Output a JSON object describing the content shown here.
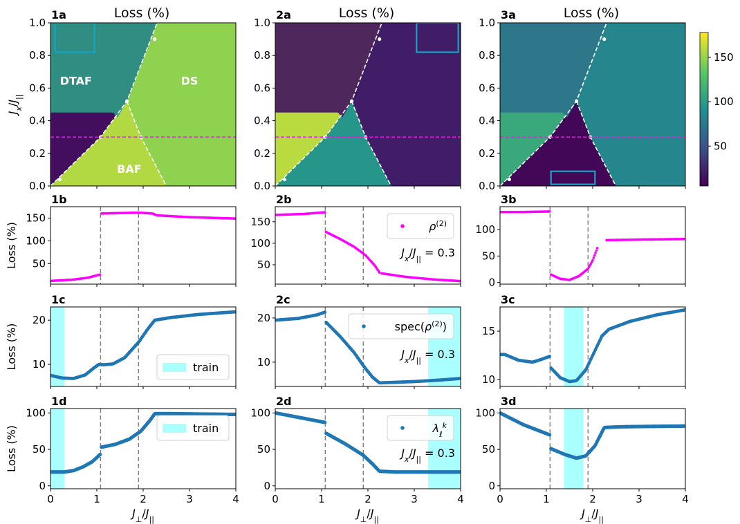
{
  "colors": {
    "rho": "#ff00ff",
    "points": "#1f77b4",
    "train": "#aaffff",
    "box": "#17a3c4",
    "vline": "#808080",
    "hline": "#e020e0",
    "colorbar": [
      "#440154",
      "#3b528b",
      "#21908d",
      "#5dc963",
      "#fde725"
    ]
  },
  "colorbar": {
    "ticks": [
      50,
      100,
      150
    ],
    "range": [
      5,
      178
    ]
  },
  "critical_points": [
    1.08,
    1.9
  ],
  "row_a": {
    "title": "Loss (%)",
    "ylabel": "J_x/J_||",
    "xlim": [
      0,
      4
    ],
    "ylim": [
      0,
      1
    ],
    "yticks": [
      "0.0",
      "0.2",
      "0.4",
      "0.6",
      "0.8",
      "1.0"
    ],
    "hline_y": 0.3,
    "region_labels": [
      "DTAF",
      "DS",
      "BAF"
    ],
    "panels": [
      {
        "label": "1a",
        "values": {
          "left": 12,
          "top": 100,
          "bottom": 158,
          "right": 148
        },
        "train_box": {
          "x": [
            0.1,
            0.95
          ],
          "y": [
            0.82,
            1.0
          ]
        }
      },
      {
        "label": "2a",
        "values": {
          "left": 160,
          "top": 15,
          "bottom": 95,
          "right": 20
        },
        "train_box": {
          "x": [
            3.05,
            3.95
          ],
          "y": [
            0.82,
            1.0
          ]
        }
      },
      {
        "label": "3a",
        "values": {
          "left": 110,
          "top": 70,
          "bottom": 8,
          "right": 85
        },
        "train_box": {
          "x": [
            1.1,
            2.05
          ],
          "y": [
            0.01,
            0.09
          ]
        }
      }
    ]
  },
  "row_b": {
    "panels": [
      {
        "label": "1b",
        "ylabel": "Loss (%)",
        "ylim": [
          5,
          175
        ],
        "yticks": [
          50,
          100,
          150
        ],
        "legend": null,
        "annotation": null,
        "segments": [
          {
            "x": [
              0,
              0.5,
              0.8,
              1.07
            ],
            "y": [
              12,
              15,
              19,
              26
            ]
          },
          {
            "x": [
              1.1,
              1.5,
              1.9,
              2.2,
              2.3,
              3.0,
              4.0
            ],
            "y": [
              160,
              161,
              162,
              160,
              156,
              152,
              149
            ]
          }
        ]
      },
      {
        "label": "2b",
        "ylabel": "",
        "ylim": [
          5,
          185
        ],
        "yticks": [
          50,
          100,
          150
        ],
        "legend": {
          "text": "ρ(2)"
        },
        "annotation": {
          "text": "Jx/J|| = 0.3"
        },
        "segments": [
          {
            "x": [
              0,
              0.6,
              1.07
            ],
            "y": [
              166,
              168,
              172
            ]
          },
          {
            "x": [
              1.1,
              1.4,
              1.7,
              1.95,
              2.15,
              2.25
            ],
            "y": [
              126,
              110,
              92,
              72,
              48,
              32
            ]
          },
          {
            "x": [
              2.3,
              2.8,
              3.4,
              4.0
            ],
            "y": [
              30,
              22,
              16,
              12
            ]
          }
        ]
      },
      {
        "label": "3b",
        "ylabel": "",
        "ylim": [
          -3,
          143
        ],
        "yticks": [
          0,
          50,
          100
        ],
        "legend": null,
        "annotation": null,
        "segments": [
          {
            "x": [
              0,
              0.5,
              1.07
            ],
            "y": [
              133,
              133,
              134
            ]
          },
          {
            "x": [
              1.1,
              1.3,
              1.5,
              1.7,
              1.9,
              2.0,
              2.1
            ],
            "y": [
              15,
              7,
              5,
              12,
              26,
              42,
              65
            ]
          },
          {
            "x": [
              2.3,
              3.0,
              4.0
            ],
            "y": [
              80,
              81,
              82
            ]
          }
        ]
      }
    ]
  },
  "row_c": {
    "panels": [
      {
        "label": "1c",
        "ylabel": "Loss (%)",
        "ylim": [
          5.0,
          23
        ],
        "yticks": [
          10,
          20
        ],
        "train": [
          [
            0,
            0.3
          ]
        ],
        "legend": {
          "text": "train",
          "kind": "patch",
          "pos": "bottom-right"
        },
        "annotation": null,
        "segments": [
          {
            "x": [
              0,
              0.25,
              0.5,
              0.75,
              0.95,
              1.05,
              1.15,
              1.35,
              1.6,
              1.9,
              2.1,
              2.25,
              2.6,
              3.2,
              4.0
            ],
            "y": [
              7.5,
              6.9,
              6.8,
              7.6,
              9.3,
              10.0,
              9.9,
              10.1,
              11.5,
              15.0,
              18.0,
              20.0,
              20.6,
              21.3,
              21.9
            ]
          }
        ]
      },
      {
        "label": "2c",
        "ylabel": "",
        "ylim": [
          4.5,
          22.5
        ],
        "yticks": [
          10,
          20
        ],
        "train": [
          [
            3.3,
            4.0
          ]
        ],
        "legend": {
          "text": "spec(ρ(2))",
          "kind": "marker",
          "pos": "top-right"
        },
        "annotation": {
          "text": "Jx/J|| = 0.3"
        },
        "segments": [
          {
            "x": [
              0,
              0.5,
              0.9,
              1.07
            ],
            "y": [
              19.5,
              19.9,
              20.7,
              21.3
            ]
          },
          {
            "x": [
              1.1,
              1.4,
              1.7,
              1.95,
              2.1,
              2.25,
              2.5,
              3.0,
              3.5,
              4.0
            ],
            "y": [
              19.0,
              15.8,
              12.2,
              8.5,
              6.6,
              5.3,
              5.4,
              5.6,
              5.9,
              6.3
            ]
          }
        ]
      },
      {
        "label": "3c",
        "ylabel": "",
        "ylim": [
          9.3,
          17.5
        ],
        "yticks": [
          10,
          15
        ],
        "train": [
          [
            1.38,
            1.8
          ]
        ],
        "legend": null,
        "annotation": null,
        "segments": [
          {
            "x": [
              0,
              0.1,
              0.4,
              0.7,
              0.9,
              1.07
            ],
            "y": [
              12.6,
              12.6,
              12.0,
              11.8,
              12.1,
              12.4
            ]
          },
          {
            "x": [
              1.1,
              1.3,
              1.5,
              1.65,
              1.85,
              2.05,
              2.2,
              2.35,
              2.8,
              3.4,
              4.0
            ],
            "y": [
              11.2,
              10.2,
              9.8,
              9.9,
              11.0,
              13.0,
              14.5,
              15.2,
              16.0,
              16.7,
              17.2
            ]
          }
        ]
      }
    ]
  },
  "row_d": {
    "xlabel": "J⊥/J||",
    "xticks": [
      0,
      1,
      2,
      3,
      4
    ],
    "panels": [
      {
        "label": "1d",
        "ylabel": "Loss (%)",
        "ylim": [
          -4,
          106
        ],
        "yticks": [
          0,
          50,
          100
        ],
        "train": [
          [
            0,
            0.3
          ]
        ],
        "legend": {
          "text": "train",
          "kind": "patch",
          "pos": "top-right"
        },
        "annotation": null,
        "segments": [
          {
            "x": [
              0,
              0.3,
              0.5,
              0.7,
              0.9,
              1.07
            ],
            "y": [
              19,
              19,
              21,
              26,
              33,
              43
            ]
          },
          {
            "x": [
              1.1,
              1.4,
              1.7,
              1.95,
              2.15,
              2.25,
              2.6,
              3.2,
              4.0
            ],
            "y": [
              53,
              57,
              64,
              75,
              90,
              99,
              99,
              98.5,
              98
            ]
          }
        ]
      },
      {
        "label": "2d",
        "ylabel": "",
        "ylim": [
          -4,
          106
        ],
        "yticks": [
          0,
          50,
          100
        ],
        "train": [
          [
            3.3,
            4.0
          ]
        ],
        "legend": {
          "text": "λℓk",
          "kind": "marker",
          "pos": "top-right"
        },
        "annotation": {
          "text": "Jx/J|| = 0.3"
        },
        "segments": [
          {
            "x": [
              0,
              0.5,
              1.07
            ],
            "y": [
              100,
              94,
              87
            ]
          },
          {
            "x": [
              1.1,
              1.5,
              1.9,
              2.1,
              2.25,
              2.6,
              3.2,
              4.0
            ],
            "y": [
              72,
              58,
              42,
              30,
              20,
              19,
              19,
              19
            ]
          }
        ]
      },
      {
        "label": "3d",
        "ylabel": "",
        "ylim": [
          -4,
          106
        ],
        "yticks": [
          0,
          50,
          100
        ],
        "train": [
          [
            1.38,
            1.8
          ]
        ],
        "legend": null,
        "annotation": null,
        "segments": [
          {
            "x": [
              0,
              0.5,
              1.07
            ],
            "y": [
              100,
              84,
              70
            ]
          },
          {
            "x": [
              1.1,
              1.4,
              1.65,
              1.85,
              2.05,
              2.25,
              2.6,
              3.2,
              4.0
            ],
            "y": [
              51,
              43,
              38,
              41,
              55,
              80,
              81,
              81.5,
              82
            ]
          }
        ]
      }
    ]
  }
}
